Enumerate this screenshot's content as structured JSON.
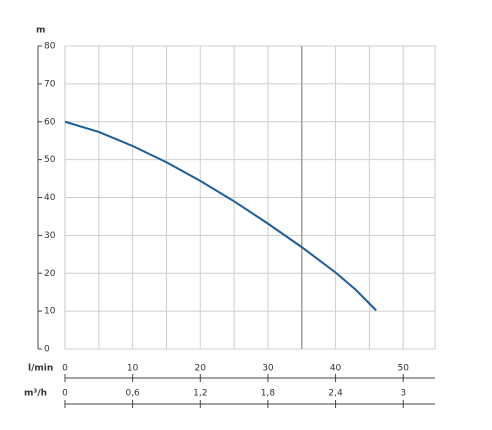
{
  "chart_data": {
    "type": "line",
    "y_label": "m",
    "x_label": "l/min",
    "x2_label": "m³/h",
    "series": [
      {
        "color": "#1b5e9a",
        "x": [
          0,
          5,
          10,
          15,
          20,
          25,
          30,
          35,
          40,
          43,
          46
        ],
        "values": [
          60,
          57.3,
          53.6,
          49.3,
          44.4,
          39,
          33.1,
          26.9,
          20.2,
          15.6,
          10.2
        ]
      }
    ],
    "xlim": [
      0,
      54.7
    ],
    "xticks": [
      0,
      10,
      20,
      30,
      40,
      50
    ],
    "x2lim": [
      0,
      3.282
    ],
    "x2ticks": [
      0,
      {
        "value": 0.6,
        "label": "0,6"
      },
      {
        "value": 1.2,
        "label": "1,2"
      },
      {
        "value": 1.8,
        "label": "1,8"
      },
      {
        "value": 2.4,
        "label": "2,4"
      },
      3
    ],
    "ylim": [
      0,
      80
    ],
    "yticks": [
      0,
      10,
      20,
      30,
      40,
      50,
      60,
      70,
      80
    ],
    "xgrid": [
      5,
      10,
      15,
      20,
      25,
      30,
      35,
      40,
      45,
      50
    ],
    "xgrid_emphasis": 35,
    "grid": true
  }
}
